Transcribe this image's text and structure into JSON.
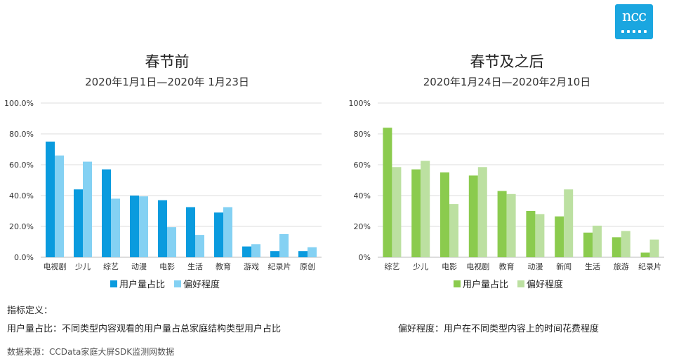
{
  "logo": {
    "text": "ncc"
  },
  "colors": {
    "left_series_1": "#0a9bde",
    "left_series_2": "#84d1f3",
    "right_series_1": "#8bcb4e",
    "right_series_2": "#bce0a1",
    "grid": "#dddddd",
    "axis": "#bbbbbb"
  },
  "chart_data": [
    {
      "type": "bar",
      "title": "春节前",
      "subtitle": "2020年1月1日—2020年 1月23日",
      "categories": [
        "电视剧",
        "少儿",
        "综艺",
        "动漫",
        "电影",
        "生活",
        "教育",
        "游戏",
        "纪录片",
        "原创"
      ],
      "series": [
        {
          "name": "用户量占比",
          "values": [
            75.0,
            44.0,
            57.0,
            40.0,
            37.0,
            32.5,
            29.0,
            7.0,
            4.0,
            4.0
          ]
        },
        {
          "name": "偏好程度",
          "values": [
            66.0,
            62.0,
            38.0,
            39.5,
            19.5,
            14.5,
            32.5,
            8.5,
            15.0,
            6.5
          ]
        }
      ],
      "ylim": [
        0,
        100
      ],
      "yticks": [
        "0.0%",
        "20.0%",
        "40.0%",
        "60.0%",
        "80.0%",
        "100.0%"
      ],
      "grid": true,
      "legend": "bottom"
    },
    {
      "type": "bar",
      "title": "春节及之后",
      "subtitle": "2020年1月24日—2020年2月10日",
      "categories": [
        "综艺",
        "少儿",
        "电影",
        "电视剧",
        "教育",
        "动漫",
        "新闻",
        "生活",
        "旅游",
        "纪录片"
      ],
      "series": [
        {
          "name": "用户量占比",
          "values": [
            84.0,
            57.0,
            55.0,
            53.0,
            43.0,
            30.0,
            26.5,
            16.0,
            13.0,
            3.0
          ]
        },
        {
          "name": "偏好程度",
          "values": [
            58.5,
            62.5,
            34.5,
            58.5,
            41.0,
            28.0,
            44.0,
            20.5,
            17.0,
            11.5
          ]
        }
      ],
      "ylim": [
        0,
        100
      ],
      "yticks": [
        "0%",
        "20%",
        "40%",
        "60%",
        "80%",
        "100%"
      ],
      "grid": true,
      "legend": "bottom"
    }
  ],
  "definitions": {
    "heading": "指标定义：",
    "user_share": "用户量占比：不同类型内容观看的用户量占总家庭结构类型用户占比",
    "preference": "偏好程度：用户在不同类型内容上的时间花费程度"
  },
  "source": "数据来源：CCData家庭大屏SDK监测网数据"
}
